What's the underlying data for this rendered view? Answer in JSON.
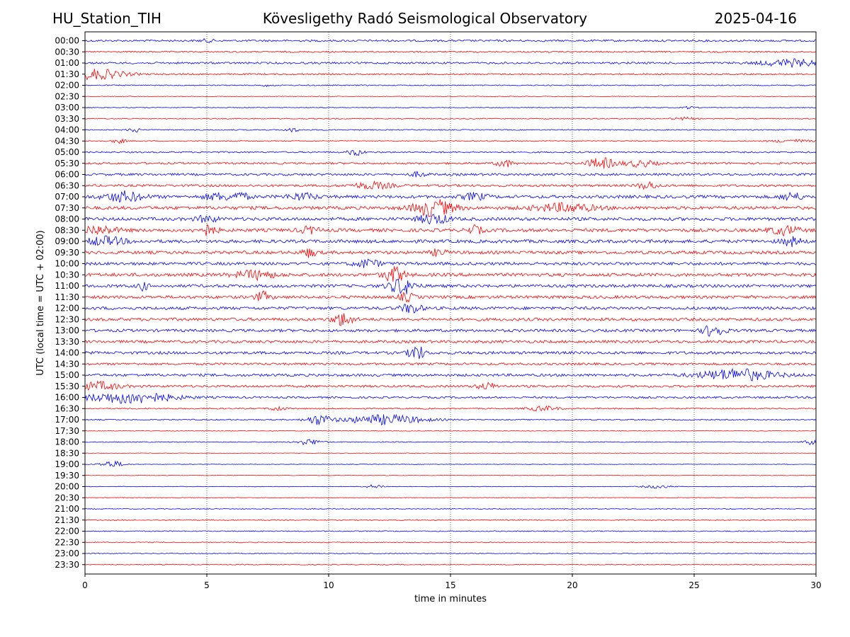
{
  "header": {
    "station": "HU_Station_TIH",
    "observatory": "Kövesligethy Radó Seismological Observatory",
    "date": "2025-04-16"
  },
  "chart_data": {
    "type": "line",
    "subtype": "helicorder",
    "title": "Kövesligethy Radó Seismological Observatory",
    "xlabel": "time in minutes",
    "ylabel": "UTC (local time = UTC + 02:00)",
    "xlim": [
      0,
      30
    ],
    "x_ticks": [
      "0",
      "5",
      "10",
      "15",
      "20",
      "25",
      "30"
    ],
    "grid": "vertical dotted lines at each x tick",
    "legend": "none",
    "row_labels": [
      "00:00",
      "00:30",
      "01:00",
      "01:30",
      "02:00",
      "02:30",
      "03:00",
      "03:30",
      "04:00",
      "04:30",
      "05:00",
      "05:30",
      "06:00",
      "06:30",
      "07:00",
      "07:30",
      "08:00",
      "08:30",
      "09:00",
      "09:30",
      "10:00",
      "10:30",
      "11:00",
      "11:30",
      "12:00",
      "12:30",
      "13:00",
      "13:30",
      "14:00",
      "14:30",
      "15:00",
      "15:30",
      "16:00",
      "16:30",
      "17:00",
      "17:30",
      "18:00",
      "18:30",
      "19:00",
      "19:30",
      "20:00",
      "20:30",
      "21:00",
      "21:30",
      "22:00",
      "22:30",
      "23:00",
      "23:30"
    ],
    "colors": [
      "#0000ff",
      "#ff0000"
    ],
    "noise_level": [
      0.6,
      0.45,
      0.6,
      0.45,
      0.3,
      0.2,
      0.22,
      0.28,
      0.3,
      0.3,
      0.45,
      0.6,
      0.7,
      0.7,
      0.95,
      1.0,
      1.0,
      1.0,
      1.0,
      0.95,
      0.9,
      1.0,
      0.9,
      0.9,
      0.9,
      0.9,
      0.85,
      0.85,
      0.85,
      0.7,
      0.8,
      0.7,
      0.6,
      0.4,
      0.35,
      0.2,
      0.25,
      0.15,
      0.15,
      0.15,
      0.15,
      0.2,
      0.25,
      0.3,
      0.3,
      0.25,
      0.25,
      0.25
    ],
    "events": [
      {
        "row": 0,
        "minute": 5.0,
        "amp": 0.8,
        "dur": 0.3
      },
      {
        "row": 2,
        "minute": 29.0,
        "amp": 2.2,
        "dur": 1.2
      },
      {
        "row": 3,
        "minute": 0.4,
        "amp": 3.2,
        "dur": 1.2
      },
      {
        "row": 4,
        "minute": 7.5,
        "amp": 0.6,
        "dur": 0.3
      },
      {
        "row": 6,
        "minute": 24.8,
        "amp": 0.7,
        "dur": 0.3
      },
      {
        "row": 7,
        "minute": 24.6,
        "amp": 0.8,
        "dur": 0.5
      },
      {
        "row": 8,
        "minute": 2.0,
        "amp": 2.0,
        "dur": 0.2
      },
      {
        "row": 8,
        "minute": 8.5,
        "amp": 1.2,
        "dur": 0.3
      },
      {
        "row": 9,
        "minute": 1.4,
        "amp": 1.2,
        "dur": 0.3
      },
      {
        "row": 9,
        "minute": 29.0,
        "amp": 1.0,
        "dur": 0.8
      },
      {
        "row": 10,
        "minute": 11.1,
        "amp": 2.0,
        "dur": 0.3
      },
      {
        "row": 11,
        "minute": 17.2,
        "amp": 2.5,
        "dur": 0.3
      },
      {
        "row": 11,
        "minute": 21.2,
        "amp": 3.2,
        "dur": 0.6
      },
      {
        "row": 11,
        "minute": 22.8,
        "amp": 2.0,
        "dur": 0.6
      },
      {
        "row": 12,
        "minute": 13.7,
        "amp": 1.5,
        "dur": 0.3
      },
      {
        "row": 13,
        "minute": 11.8,
        "amp": 2.0,
        "dur": 0.8
      },
      {
        "row": 13,
        "minute": 23.1,
        "amp": 2.2,
        "dur": 0.4
      },
      {
        "row": 14,
        "minute": 1.6,
        "amp": 3.0,
        "dur": 0.8
      },
      {
        "row": 14,
        "minute": 5.5,
        "amp": 2.0,
        "dur": 0.6
      },
      {
        "row": 14,
        "minute": 6.4,
        "amp": 2.5,
        "dur": 0.3
      },
      {
        "row": 14,
        "minute": 8.9,
        "amp": 2.0,
        "dur": 0.6
      },
      {
        "row": 14,
        "minute": 16.0,
        "amp": 2.0,
        "dur": 0.5
      },
      {
        "row": 14,
        "minute": 29.0,
        "amp": 2.5,
        "dur": 0.4
      },
      {
        "row": 15,
        "minute": 14.3,
        "amp": 5.0,
        "dur": 0.8
      },
      {
        "row": 15,
        "minute": 19.7,
        "amp": 2.5,
        "dur": 1.2
      },
      {
        "row": 16,
        "minute": 14.3,
        "amp": 3.0,
        "dur": 0.6
      },
      {
        "row": 16,
        "minute": 5.0,
        "amp": 2.0,
        "dur": 0.4
      },
      {
        "row": 17,
        "minute": 0.5,
        "amp": 2.5,
        "dur": 0.8
      },
      {
        "row": 17,
        "minute": 5.0,
        "amp": 3.0,
        "dur": 0.4
      },
      {
        "row": 17,
        "minute": 9.2,
        "amp": 2.0,
        "dur": 0.4
      },
      {
        "row": 17,
        "minute": 16.0,
        "amp": 2.5,
        "dur": 0.3
      },
      {
        "row": 17,
        "minute": 28.7,
        "amp": 2.5,
        "dur": 0.6
      },
      {
        "row": 18,
        "minute": 0.8,
        "amp": 2.5,
        "dur": 0.8
      },
      {
        "row": 18,
        "minute": 29.0,
        "amp": 2.5,
        "dur": 0.4
      },
      {
        "row": 19,
        "minute": 9.2,
        "amp": 2.5,
        "dur": 0.3
      },
      {
        "row": 19,
        "minute": 14.5,
        "amp": 2.0,
        "dur": 0.3
      },
      {
        "row": 20,
        "minute": 11.6,
        "amp": 2.5,
        "dur": 0.5
      },
      {
        "row": 21,
        "minute": 12.7,
        "amp": 5.0,
        "dur": 0.4
      },
      {
        "row": 21,
        "minute": 7.0,
        "amp": 2.5,
        "dur": 0.8
      },
      {
        "row": 22,
        "minute": 13.0,
        "amp": 5.0,
        "dur": 0.5
      },
      {
        "row": 22,
        "minute": 2.4,
        "amp": 2.5,
        "dur": 0.2
      },
      {
        "row": 23,
        "minute": 7.3,
        "amp": 3.0,
        "dur": 0.3
      },
      {
        "row": 23,
        "minute": 13.2,
        "amp": 2.5,
        "dur": 0.3
      },
      {
        "row": 24,
        "minute": 13.4,
        "amp": 3.0,
        "dur": 0.4
      },
      {
        "row": 25,
        "minute": 10.6,
        "amp": 4.0,
        "dur": 0.4
      },
      {
        "row": 26,
        "minute": 25.8,
        "amp": 4.0,
        "dur": 0.4
      },
      {
        "row": 28,
        "minute": 13.6,
        "amp": 5.0,
        "dur": 0.3
      },
      {
        "row": 30,
        "minute": 26.8,
        "amp": 3.5,
        "dur": 1.5
      },
      {
        "row": 31,
        "minute": 0.6,
        "amp": 2.5,
        "dur": 0.8
      },
      {
        "row": 31,
        "minute": 16.5,
        "amp": 2.0,
        "dur": 0.4
      },
      {
        "row": 32,
        "minute": 1.8,
        "amp": 3.5,
        "dur": 1.8
      },
      {
        "row": 33,
        "minute": 7.9,
        "amp": 1.5,
        "dur": 0.3
      },
      {
        "row": 33,
        "minute": 18.8,
        "amp": 1.5,
        "dur": 0.6
      },
      {
        "row": 34,
        "minute": 9.6,
        "amp": 3.0,
        "dur": 0.5
      },
      {
        "row": 34,
        "minute": 12.3,
        "amp": 3.0,
        "dur": 1.6
      },
      {
        "row": 36,
        "minute": 9.2,
        "amp": 1.8,
        "dur": 0.5
      },
      {
        "row": 36,
        "minute": 29.8,
        "amp": 1.5,
        "dur": 0.3
      },
      {
        "row": 38,
        "minute": 1.1,
        "amp": 2.0,
        "dur": 0.5
      },
      {
        "row": 40,
        "minute": 11.9,
        "amp": 1.2,
        "dur": 0.4
      },
      {
        "row": 40,
        "minute": 23.5,
        "amp": 1.0,
        "dur": 0.6
      }
    ]
  }
}
